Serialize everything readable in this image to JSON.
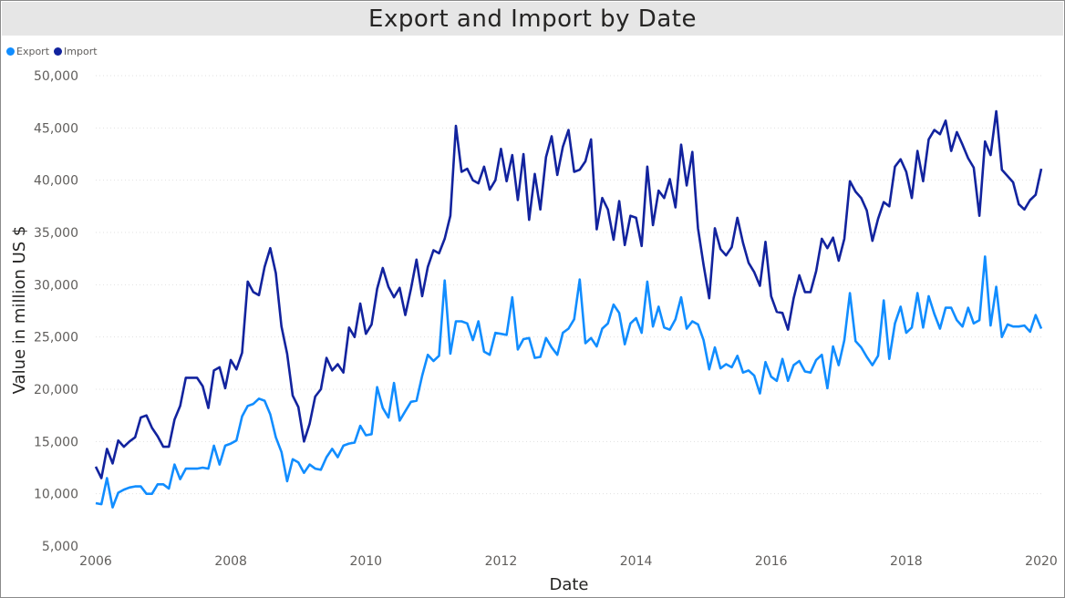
{
  "chart_data": {
    "type": "line",
    "title": "Export and Import by Date",
    "xlabel": "Date",
    "ylabel": "Value in million US $",
    "xlim": [
      2006,
      2020
    ],
    "ylim": [
      5000,
      50000
    ],
    "x_ticks": [
      "2006",
      "2008",
      "2010",
      "2012",
      "2014",
      "2016",
      "2018",
      "2020"
    ],
    "y_ticks": [
      "5,000",
      "10,000",
      "15,000",
      "20,000",
      "25,000",
      "30,000",
      "35,000",
      "40,000",
      "45,000",
      "50,000"
    ],
    "grid": true,
    "legend_position": "top-left",
    "x_start": "2006-01",
    "x_step": "month",
    "series": [
      {
        "name": "Export",
        "color": "#118DFF",
        "values": [
          9100,
          9000,
          11500,
          8700,
          10100,
          10400,
          10600,
          10700,
          10700,
          10000,
          10000,
          10900,
          10900,
          10500,
          12800,
          11400,
          12400,
          12400,
          12400,
          12500,
          12400,
          14600,
          12800,
          14600,
          14800,
          15100,
          17400,
          18400,
          18600,
          19100,
          18900,
          17600,
          15400,
          14000,
          11200,
          13300,
          13000,
          12000,
          12800,
          12400,
          12300,
          13500,
          14300,
          13500,
          14600,
          14800,
          14900,
          16500,
          15600,
          15700,
          20200,
          18200,
          17300,
          20600,
          17000,
          17900,
          18800,
          18900,
          21300,
          23300,
          22700,
          23200,
          30400,
          23400,
          26500,
          26500,
          26300,
          24700,
          26500,
          23600,
          23300,
          25400,
          25300,
          25200,
          28800,
          23800,
          24800,
          24900,
          23000,
          23100,
          24900,
          24000,
          23300,
          25400,
          25800,
          26700,
          30500,
          24400,
          24900,
          24100,
          25800,
          26300,
          28100,
          27300,
          24300,
          26300,
          26800,
          25400,
          30300,
          26000,
          27900,
          25900,
          25700,
          26700,
          28800,
          25800,
          26500,
          26200,
          24700,
          21900,
          24000,
          22000,
          22400,
          22100,
          23200,
          21600,
          21800,
          21300,
          19600,
          22600,
          21200,
          20800,
          22900,
          20800,
          22300,
          22700,
          21700,
          21600,
          22800,
          23300,
          20100,
          24100,
          22300,
          24700,
          29200,
          24600,
          24000,
          23100,
          22300,
          23200,
          28500,
          22900,
          26300,
          27900,
          25400,
          25900,
          29200,
          25900,
          28900,
          27200,
          25800,
          27800,
          27800,
          26600,
          26000,
          27800,
          26300,
          26600,
          32700,
          26100,
          29800,
          25000,
          26200,
          26000,
          26000,
          26100,
          25500,
          27100,
          25800
        ]
      },
      {
        "name": "Import",
        "color": "#12239E",
        "values": [
          12600,
          11500,
          14300,
          12900,
          15100,
          14500,
          15000,
          15400,
          17300,
          17500,
          16300,
          15500,
          14500,
          14500,
          17100,
          18400,
          21100,
          21100,
          21100,
          20300,
          18200,
          21800,
          22100,
          20100,
          22800,
          21900,
          23500,
          30300,
          29300,
          29000,
          31700,
          33500,
          31100,
          26000,
          23400,
          19400,
          18300,
          15000,
          16700,
          19300,
          20000,
          23000,
          21800,
          22400,
          21600,
          25900,
          25000,
          28200,
          25300,
          26200,
          29600,
          31600,
          29800,
          28800,
          29700,
          27100,
          29600,
          32400,
          28900,
          31700,
          33300,
          33000,
          34400,
          36600,
          45200,
          40800,
          41100,
          40000,
          39700,
          41300,
          39100,
          40000,
          43000,
          39900,
          42400,
          38100,
          42500,
          36200,
          40600,
          37200,
          42200,
          44200,
          40500,
          43200,
          44800,
          40800,
          41000,
          41800,
          43900,
          35300,
          38300,
          37200,
          34300,
          38000,
          33800,
          36600,
          36400,
          33700,
          41300,
          35700,
          39000,
          38300,
          40100,
          37400,
          43400,
          39500,
          42700,
          35400,
          31900,
          28700,
          35400,
          33400,
          32800,
          33600,
          36400,
          34000,
          32100,
          31200,
          29900,
          34100,
          28900,
          27400,
          27300,
          25700,
          28700,
          30900,
          29300,
          29300,
          31300,
          34400,
          33500,
          34500,
          32300,
          34400,
          39900,
          38900,
          38300,
          37100,
          34200,
          36300,
          37900,
          37500,
          41300,
          42000,
          40800,
          38300,
          42800,
          39900,
          43900,
          44800,
          44400,
          45700,
          42800,
          44600,
          43400,
          42100,
          41200,
          36600,
          43700,
          42400,
          46600,
          41000,
          40400,
          39800,
          37700,
          37200,
          38100,
          38600,
          41100
        ]
      }
    ]
  }
}
